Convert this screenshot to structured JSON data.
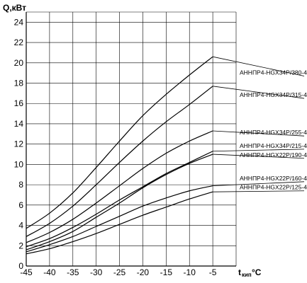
{
  "chart_data": {
    "type": "line",
    "title": "",
    "ylabel": "Q,кВт",
    "xlabel_main": "t",
    "xlabel_sub": "кип",
    "xlabel_unit": "°C",
    "xlim": [
      -45,
      0
    ],
    "ylim": [
      0,
      25
    ],
    "x_ticks": [
      -45,
      -40,
      -35,
      -30,
      -25,
      -20,
      -15,
      -10,
      -5
    ],
    "y_ticks": [
      0,
      2,
      4,
      6,
      8,
      10,
      12,
      14,
      16,
      18,
      20,
      22,
      24
    ],
    "grid": true,
    "x": [
      -45,
      -40,
      -35,
      -30,
      -25,
      -20,
      -15,
      -10,
      -5
    ],
    "series": [
      {
        "name": "АННПР4-HGX34P/380-4",
        "values": [
          3.7,
          5.2,
          7.2,
          9.7,
          12.3,
          14.8,
          16.9,
          18.8,
          20.6
        ],
        "leader_y": 18.7
      },
      {
        "name": "АННПР4-HGX34P/315-4",
        "values": [
          2.9,
          4.2,
          5.9,
          8.0,
          10.2,
          12.3,
          14.2,
          15.9,
          17.7
        ],
        "leader_y": 16.5
      },
      {
        "name": "АННПР4-HGX34P/255-4",
        "values": [
          2.3,
          3.3,
          4.6,
          6.2,
          7.9,
          9.6,
          11.1,
          12.3,
          13.3
        ],
        "leader_y": 12.8
      },
      {
        "name": "АННПР4-HGX34P/215-4",
        "values": [
          1.9,
          2.7,
          3.8,
          5.1,
          6.5,
          7.8,
          9.1,
          10.2,
          11.3
        ],
        "leader_y": 11.5
      },
      {
        "name": "АННПР4-HGX22P/190-4",
        "values": [
          1.6,
          2.4,
          3.4,
          4.8,
          6.2,
          7.7,
          9.0,
          10.1,
          11.0
        ],
        "leader_y": 10.6
      },
      {
        "name": "АННПР4-HGX22P/160-4",
        "values": [
          1.4,
          2.1,
          2.9,
          3.9,
          4.9,
          5.9,
          6.7,
          7.4,
          7.9
        ],
        "leader_y": 8.3
      },
      {
        "name": "АННПР4-HGX22P/125-4",
        "values": [
          1.2,
          1.7,
          2.4,
          3.2,
          4.1,
          5.0,
          5.8,
          6.6,
          7.3
        ],
        "leader_y": 7.4
      }
    ]
  }
}
